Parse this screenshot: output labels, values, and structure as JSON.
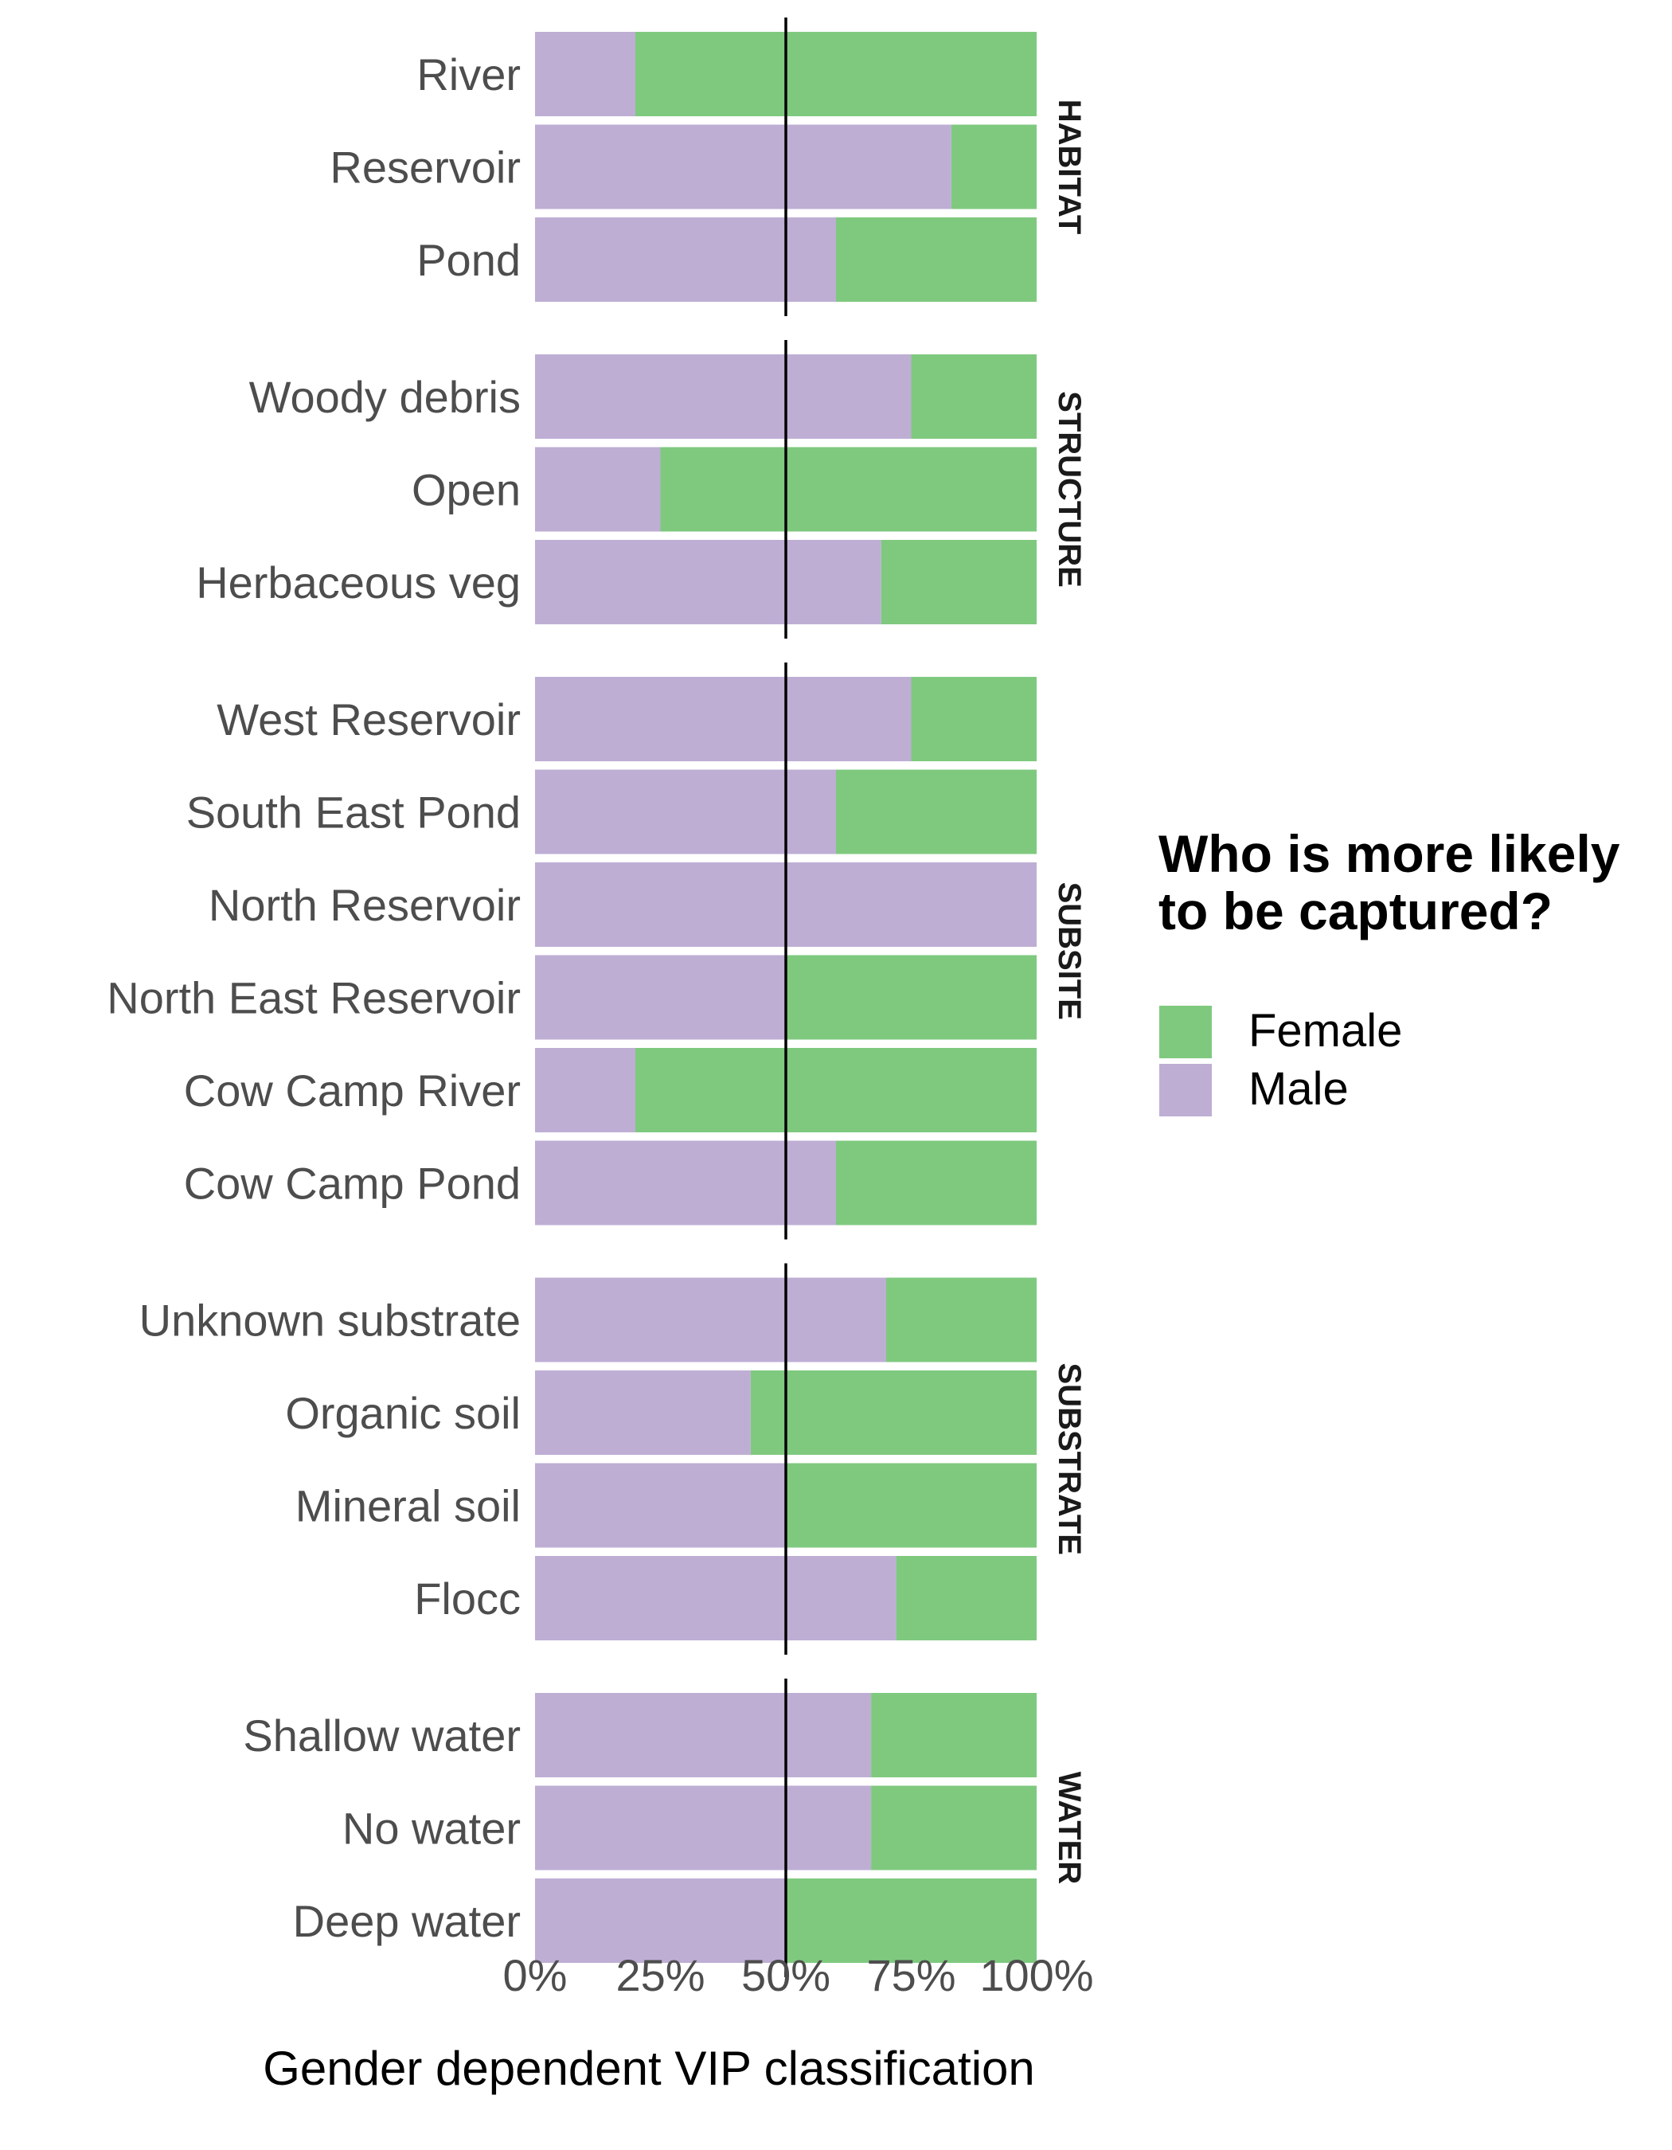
{
  "chart_data": {
    "type": "bar",
    "orientation": "horizontal",
    "stacked": true,
    "xlabel": "Gender dependent VIP classification",
    "xlim": [
      0,
      100
    ],
    "x_ticks": [
      "0%",
      "25%",
      "50%",
      "75%",
      "100%"
    ],
    "reference_line": 50,
    "legend": {
      "title_lines": [
        "Who is more likely",
        "to be captured?"
      ],
      "placement": "right",
      "entries": [
        {
          "name": "Female",
          "color": "#7fc97f"
        },
        {
          "name": "Male",
          "color": "#beaed4"
        }
      ]
    },
    "facets": [
      {
        "name": "HABITAT",
        "rows": [
          {
            "label": "River",
            "male": 20
          },
          {
            "label": "Reservoir",
            "male": 83
          },
          {
            "label": "Pond",
            "male": 60
          }
        ]
      },
      {
        "name": "STRUCTURE",
        "rows": [
          {
            "label": "Woody debris",
            "male": 75
          },
          {
            "label": "Open",
            "male": 25
          },
          {
            "label": "Herbaceous veg",
            "male": 69
          }
        ]
      },
      {
        "name": "SUBSITE",
        "rows": [
          {
            "label": "West Reservoir",
            "male": 75
          },
          {
            "label": "South East Pond",
            "male": 60
          },
          {
            "label": "North Reservoir",
            "male": 100
          },
          {
            "label": "North East Reservoir",
            "male": 50
          },
          {
            "label": "Cow Camp River",
            "male": 20
          },
          {
            "label": "Cow Camp Pond",
            "male": 60
          }
        ]
      },
      {
        "name": "SUBSTRATE",
        "rows": [
          {
            "label": "Unknown substrate",
            "male": 70
          },
          {
            "label": "Organic soil",
            "male": 43
          },
          {
            "label": "Mineral soil",
            "male": 50
          },
          {
            "label": "Flocc",
            "male": 72
          }
        ]
      },
      {
        "name": "WATER",
        "rows": [
          {
            "label": "Shallow water",
            "male": 67
          },
          {
            "label": "No water",
            "male": 67
          },
          {
            "label": "Deep water",
            "male": 50
          }
        ]
      }
    ]
  }
}
